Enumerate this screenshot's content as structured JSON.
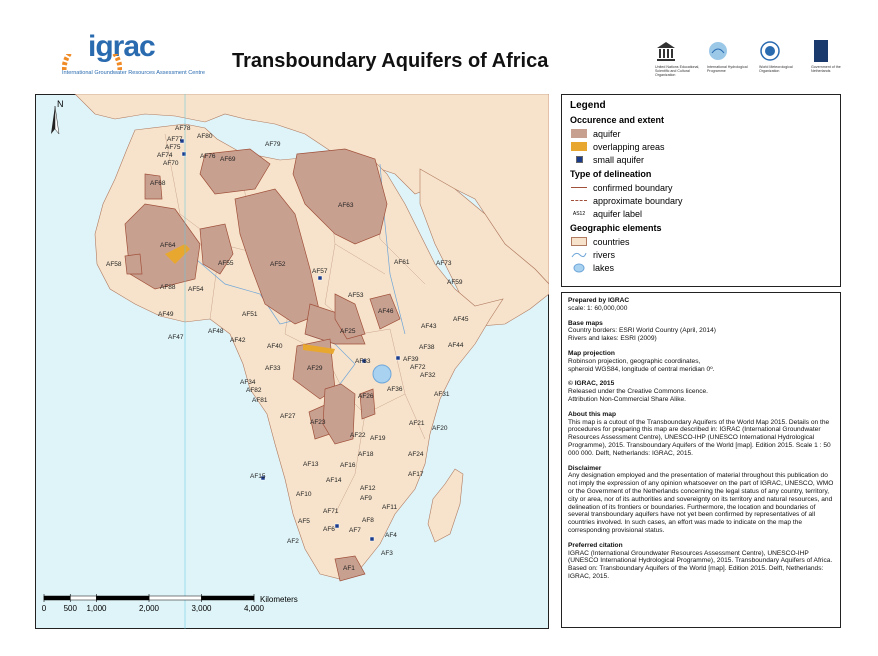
{
  "header": {
    "logo": "igrac",
    "logo_subtitle": "International Groundwater Resources Assessment Centre",
    "title": "Transboundary Aquifers of Africa",
    "partners": [
      "United Nations Educational, Scientific and Cultural Organization",
      "International Hydrological Programme",
      "World Meteorological Organization",
      "Government of the Netherlands"
    ]
  },
  "map": {
    "north": "N",
    "aquifer_labels": [
      "AF78",
      "AF77",
      "AF80",
      "AF75",
      "AF74",
      "AF76",
      "AF69",
      "AF79",
      "AF70",
      "AF68",
      "AF63",
      "AF64",
      "AF58",
      "AF55",
      "AF52",
      "AF57",
      "AF61",
      "AF73",
      "AF59",
      "AF88",
      "AF54",
      "AF53",
      "AF49",
      "AF51",
      "AF46",
      "AF45",
      "AF48",
      "AF47",
      "AF25",
      "AF43",
      "AF42",
      "AF38",
      "AF44",
      "AF40",
      "AF83",
      "AF39",
      "AF72",
      "AF29",
      "AF33",
      "AF32",
      "AF34",
      "AF36",
      "AF82",
      "AF26",
      "AF31",
      "AF81",
      "AF27",
      "AF23",
      "AF21",
      "AF20",
      "AF22",
      "AF19",
      "AF18",
      "AF24",
      "AF13",
      "AF16",
      "AF17",
      "AF15",
      "AF14",
      "AF12",
      "AF10",
      "AF9",
      "AF11",
      "AF71",
      "AF8",
      "AF5",
      "AF6",
      "AF7",
      "AF4",
      "AF2",
      "AF3",
      "AF1"
    ],
    "scale_bar": {
      "unit": "Kilometers",
      "ticks": [
        0,
        500,
        {
          "value": 1000,
          "label": "1,000"
        },
        {
          "value": 2000,
          "label": "2,000"
        },
        {
          "value": 3000,
          "label": "3,000"
        },
        {
          "value": 4000,
          "label": "4,000"
        }
      ]
    }
  },
  "legend": {
    "title": "Legend",
    "sections": [
      {
        "heading": "Occurence and extent",
        "items": [
          "aquifer",
          "overlapping areas",
          "small aquifer"
        ]
      },
      {
        "heading": "Type of delineation",
        "items": [
          "confirmed boundary",
          "approximate boundary",
          "aquifer label"
        ],
        "sample_label": "AS12"
      },
      {
        "heading": "Geographic elements",
        "items": [
          "countries",
          "rivers",
          "lakes"
        ]
      }
    ]
  },
  "info": {
    "sections": [
      {
        "heading": "Prepared by IGRAC",
        "text": [
          "scale: 1: 60,000,000"
        ]
      },
      {
        "heading": "Base maps",
        "text": [
          "Country borders: ESRI World Country  (April, 2014)",
          "Rivers and lakes: ESRI (2009)"
        ]
      },
      {
        "heading": "Map projection",
        "text": [
          "Robinson projection, geographic coordinates,",
          "spheroid WGS84, longitude of central meridian 0º."
        ]
      },
      {
        "heading": "© IGRAC, 2015",
        "text": [
          "Released under the Creative Commons licence.",
          "Attribution Non-Commercial Share Alike."
        ]
      },
      {
        "heading": "About  this map",
        "text": [
          "This map is a cutout of the Transboundary Aquifers of the World Map 2015. Details on the procedures for preparing this map are described in:  IGRAC (International Groundwater Resources Assessment Centre), UNESCO-IHP (UNESCO International Hydrological Programme), 2015. Transboundary Aquifers of the World [map]. Edition 2015. Scale 1 : 50 000 000. Delft, Netherlands: IGRAC, 2015."
        ]
      },
      {
        "heading": "Disclaimer",
        "text": [
          "Any designation employed and the presentation of material throughout this publication do not imply the expression of any opinion whatsoever on the part of IGRAC, UNESCO, WMO or the Government of the Netherlands concerning the legal status of any country, territory, city or area, nor of its authorities and sovereignty on its territory and natural resources, and delineation of its frontiers or boundaries. Furthermore, the location and boundaries of several transboundary aquifers have not yet been confirmed by representatives of all countries involved. In such cases, an effort was made to indicate on the map the corresponding provisional status."
        ]
      },
      {
        "heading": "Preferred citation",
        "text": [
          "IGRAC (International Groundwater Resources Assessment Centre), UNESCO-IHP (UNESCO International Hydrological Programme), 2015. Transboundary Aquifers of Africa. Based on: Transboundary Aquifers of the World [map]. Edition 2015.  Delft, Netherlands: IGRAC, 2015."
        ]
      }
    ]
  }
}
